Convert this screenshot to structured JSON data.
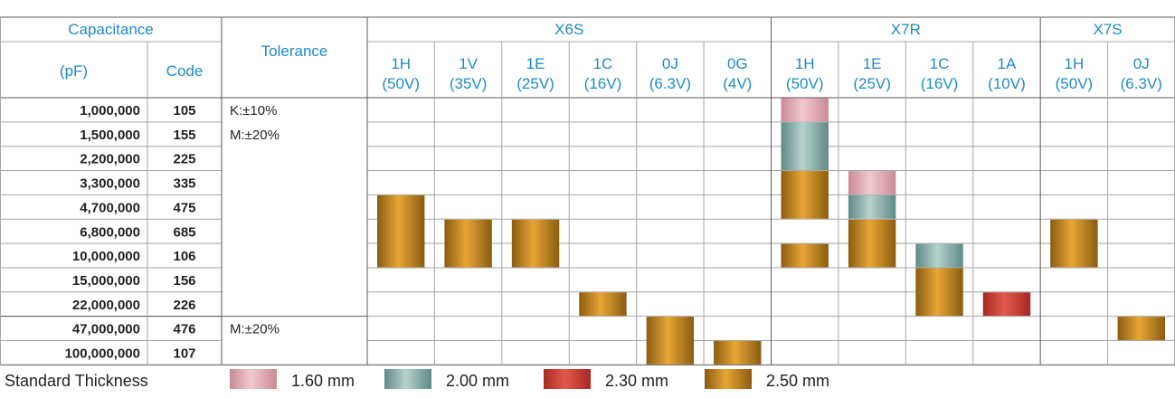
{
  "table": {
    "header": {
      "capacitance_label": "Capacitance",
      "unit_label": "(pF)",
      "code_label": "Code",
      "tolerance_label": "Tolerance"
    },
    "groups": [
      {
        "name": "X6S",
        "columns": [
          {
            "code": "1H",
            "voltage": "(50V)"
          },
          {
            "code": "1V",
            "voltage": "(35V)"
          },
          {
            "code": "1E",
            "voltage": "(25V)"
          },
          {
            "code": "1C",
            "voltage": "(16V)"
          },
          {
            "code": "0J",
            "voltage": "(6.3V)"
          },
          {
            "code": "0G",
            "voltage": "(4V)"
          }
        ]
      },
      {
        "name": "X7R",
        "columns": [
          {
            "code": "1H",
            "voltage": "(50V)"
          },
          {
            "code": "1E",
            "voltage": "(25V)"
          },
          {
            "code": "1C",
            "voltage": "(16V)"
          },
          {
            "code": "1A",
            "voltage": "(10V)"
          }
        ]
      },
      {
        "name": "X7S",
        "columns": [
          {
            "code": "1H",
            "voltage": "(50V)"
          },
          {
            "code": "0J",
            "voltage": "(6.3V)"
          }
        ]
      }
    ],
    "rows": [
      {
        "capacitance": "1,000,000",
        "code": "105"
      },
      {
        "capacitance": "1,500,000",
        "code": "155"
      },
      {
        "capacitance": "2,200,000",
        "code": "225"
      },
      {
        "capacitance": "3,300,000",
        "code": "335"
      },
      {
        "capacitance": "4,700,000",
        "code": "475"
      },
      {
        "capacitance": "6,800,000",
        "code": "685"
      },
      {
        "capacitance": "10,000,000",
        "code": "106"
      },
      {
        "capacitance": "15,000,000",
        "code": "156"
      },
      {
        "capacitance": "22,000,000",
        "code": "226"
      },
      {
        "capacitance": "47,000,000",
        "code": "476"
      },
      {
        "capacitance": "100,000,000",
        "code": "107"
      }
    ],
    "tolerance_groups": [
      {
        "lines": [
          "K:±10%",
          "M:±20%"
        ]
      },
      {
        "lines": [
          "M:±20%"
        ]
      }
    ],
    "availability": [
      {
        "column": 0,
        "segments": [
          {
            "from": 4,
            "to": 6,
            "thickness": "2.50 mm"
          }
        ]
      },
      {
        "column": 1,
        "segments": [
          {
            "from": 5,
            "to": 6,
            "thickness": "2.50 mm"
          }
        ]
      },
      {
        "column": 2,
        "segments": [
          {
            "from": 5,
            "to": 6,
            "thickness": "2.50 mm"
          }
        ]
      },
      {
        "column": 3,
        "segments": [
          {
            "from": 8,
            "to": 8,
            "thickness": "2.50 mm"
          }
        ]
      },
      {
        "column": 4,
        "segments": [
          {
            "from": 9,
            "to": 10,
            "thickness": "2.50 mm"
          }
        ]
      },
      {
        "column": 5,
        "segments": [
          {
            "from": 10,
            "to": 10,
            "thickness": "2.50 mm"
          }
        ]
      },
      {
        "column": 6,
        "segments": [
          {
            "from": 0,
            "to": 0,
            "thickness": "1.60 mm"
          },
          {
            "from": 1,
            "to": 2,
            "thickness": "2.00 mm"
          },
          {
            "from": 3,
            "to": 4,
            "thickness": "2.50 mm"
          },
          {
            "from": 6,
            "to": 6,
            "thickness": "2.50 mm"
          }
        ]
      },
      {
        "column": 7,
        "segments": [
          {
            "from": 3,
            "to": 3,
            "thickness": "1.60 mm"
          },
          {
            "from": 4,
            "to": 4,
            "thickness": "2.00 mm"
          },
          {
            "from": 5,
            "to": 6,
            "thickness": "2.50 mm"
          }
        ]
      },
      {
        "column": 8,
        "segments": [
          {
            "from": 6,
            "to": 6,
            "thickness": "2.00 mm"
          },
          {
            "from": 7,
            "to": 8,
            "thickness": "2.50 mm"
          }
        ]
      },
      {
        "column": 9,
        "segments": [
          {
            "from": 8,
            "to": 8,
            "thickness": "2.30 mm"
          }
        ]
      },
      {
        "column": 10,
        "segments": [
          {
            "from": 5,
            "to": 6,
            "thickness": "2.50 mm"
          }
        ]
      },
      {
        "column": 11,
        "segments": [
          {
            "from": 9,
            "to": 9,
            "thickness": "2.50 mm"
          }
        ]
      }
    ]
  },
  "legend": {
    "title": "Standard Thickness",
    "items": [
      {
        "label": "1.60 mm",
        "color": "#c98a96",
        "highlight": "#f2c8cf"
      },
      {
        "label": "2.00 mm",
        "color": "#5e8a86",
        "highlight": "#b7d2cd"
      },
      {
        "label": "2.30 mm",
        "color": "#a82a22",
        "highlight": "#e2574b"
      },
      {
        "label": "2.50 mm",
        "color": "#8a5d10",
        "highlight": "#e8a535"
      }
    ]
  },
  "colors": {
    "header_text": "#1f8ac9",
    "body_text": "#231f20",
    "grid": "#a6a6a6"
  }
}
